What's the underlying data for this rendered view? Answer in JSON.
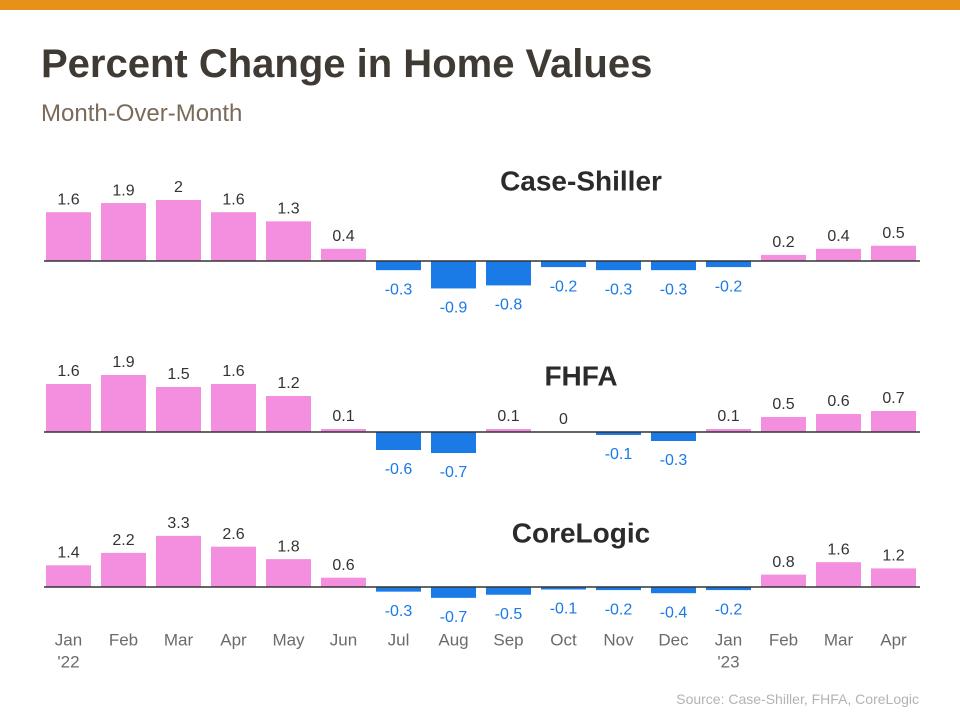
{
  "header": {
    "title": "Percent Change in Home Values",
    "subtitle": "Month-Over-Month",
    "accent_color": "#e8911a"
  },
  "footer": {
    "source": "Source: Case-Shiller, FHFA, CoreLogic"
  },
  "colors": {
    "positive": "#f48ede",
    "negative": "#1a7ae6",
    "axis": "#333333",
    "text": "#333333",
    "tick": "#6b6b6b"
  },
  "chart_data": {
    "type": "bar",
    "title": "Percent Change in Home Values",
    "subtitle": "Month-Over-Month",
    "categories": [
      "Jan '22",
      "Feb",
      "Mar",
      "Apr",
      "May",
      "Jun",
      "Jul",
      "Aug",
      "Sep",
      "Oct",
      "Nov",
      "Dec",
      "Jan '23",
      "Feb",
      "Mar",
      "Apr"
    ],
    "tick_labels": [
      [
        "Jan",
        "'22"
      ],
      [
        "Feb"
      ],
      [
        "Mar"
      ],
      [
        "Apr"
      ],
      [
        "May"
      ],
      [
        "Jun"
      ],
      [
        "Jul"
      ],
      [
        "Aug"
      ],
      [
        "Sep"
      ],
      [
        "Oct"
      ],
      [
        "Nov"
      ],
      [
        "Dec"
      ],
      [
        "Jan",
        "'23"
      ],
      [
        "Feb"
      ],
      [
        "Mar"
      ],
      [
        "Apr"
      ]
    ],
    "series": [
      {
        "name": "Case-Shiller",
        "values": [
          1.6,
          1.9,
          2,
          1.6,
          1.3,
          0.4,
          -0.3,
          -0.9,
          -0.8,
          -0.2,
          -0.3,
          -0.3,
          -0.2,
          0.2,
          0.4,
          0.5
        ]
      },
      {
        "name": "FHFA",
        "values": [
          1.6,
          1.9,
          1.5,
          1.6,
          1.2,
          0.1,
          -0.6,
          -0.7,
          0.1,
          0,
          -0.1,
          -0.3,
          0.1,
          0.5,
          0.6,
          0.7
        ]
      },
      {
        "name": "CoreLogic",
        "values": [
          1.4,
          2.2,
          3.3,
          2.6,
          1.8,
          0.6,
          -0.3,
          -0.7,
          -0.5,
          -0.1,
          -0.2,
          -0.4,
          -0.2,
          0.8,
          1.6,
          1.2
        ]
      }
    ],
    "grid": false,
    "legend": "none"
  }
}
